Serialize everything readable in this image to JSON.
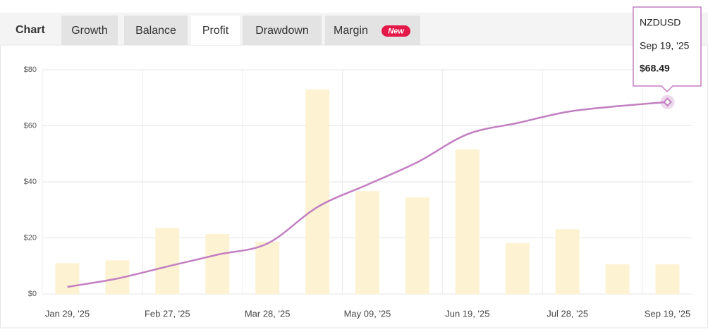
{
  "chart_label": "Chart",
  "tabs": [
    "Growth",
    "Balance",
    "Profit",
    "Drawdown",
    "Margin"
  ],
  "active_tab": 2,
  "badge": "New",
  "chart_data": {
    "type": "bar-line",
    "categories": [
      "Jan 29, '25",
      null,
      "Feb 27, '25",
      null,
      "Mar 28, '25",
      null,
      "May 09, '25",
      null,
      "Jun 19, '25",
      null,
      "Jul 28, '25",
      null,
      "Sep 19, '25"
    ],
    "series": [
      {
        "type": "bar",
        "color": "#fdf2d2",
        "values": [
          11,
          12,
          23.6,
          21.4,
          18.6,
          73,
          36.7,
          34.5,
          51.6,
          18.1,
          23.1,
          10.6,
          10.6
        ]
      },
      {
        "type": "line",
        "name": "NZDUSD",
        "color": "#c27fc1",
        "values": [
          2.5,
          5.5,
          9.8,
          14,
          18,
          31,
          39,
          47,
          57,
          61,
          65,
          67,
          68.49
        ],
        "value_labels": [
          null,
          null,
          null,
          null,
          null,
          null,
          null,
          null,
          null,
          null,
          null,
          null,
          "$68.49"
        ]
      }
    ],
    "ylim": [
      0,
      80
    ],
    "yticks": [
      {
        "value": 0,
        "label": "$0"
      },
      {
        "value": 20,
        "label": "$20"
      },
      {
        "value": 40,
        "label": "$40"
      },
      {
        "value": 60,
        "label": "$60"
      },
      {
        "value": 80,
        "label": "$80"
      }
    ],
    "grid": true
  }
}
